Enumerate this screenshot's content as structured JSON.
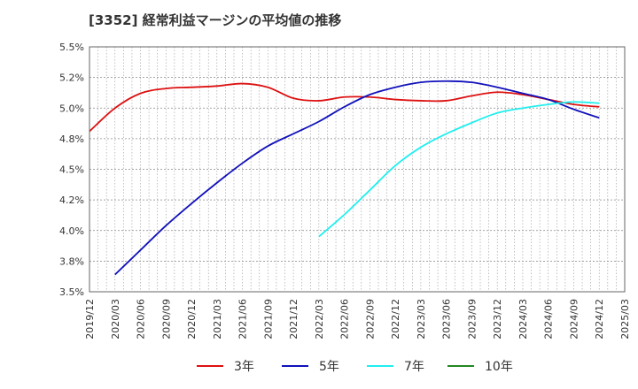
{
  "chart_data": {
    "type": "line",
    "title": "[3352]  経常利益マージンの平均値の推移",
    "xlabel": "",
    "ylabel": "",
    "x_ticks": [
      "2019/12",
      "2020/03",
      "2020/06",
      "2020/09",
      "2020/12",
      "2021/03",
      "2021/06",
      "2021/09",
      "2021/12",
      "2022/03",
      "2022/06",
      "2022/09",
      "2022/12",
      "2023/03",
      "2023/06",
      "2023/09",
      "2023/12",
      "2024/03",
      "2024/06",
      "2024/09",
      "2024/12",
      "2025/03"
    ],
    "y_ticks": [
      "3.5%",
      "3.8%",
      "4.0%",
      "4.2%",
      "4.5%",
      "4.8%",
      "5.0%",
      "5.2%",
      "5.5%"
    ],
    "ylim": [
      3.5,
      5.5
    ],
    "grid": true,
    "legend_position": "bottom",
    "series": [
      {
        "name": "3年",
        "color": "#dd1111",
        "x": [
          "2019/12",
          "2020/03",
          "2020/06",
          "2020/09",
          "2020/12",
          "2021/03",
          "2021/06",
          "2021/09",
          "2021/12",
          "2022/03",
          "2022/06",
          "2022/09",
          "2022/12",
          "2023/03",
          "2023/06",
          "2023/09",
          "2023/12",
          "2024/03",
          "2024/06",
          "2024/09",
          "2024/12"
        ],
        "values": [
          4.81,
          5.0,
          5.12,
          5.16,
          5.17,
          5.18,
          5.2,
          5.17,
          5.08,
          5.06,
          5.09,
          5.09,
          5.07,
          5.06,
          5.06,
          5.1,
          5.13,
          5.11,
          5.07,
          5.03,
          5.01
        ]
      },
      {
        "name": "5年",
        "color": "#1111bb",
        "x": [
          "2020/03",
          "2020/06",
          "2020/09",
          "2020/12",
          "2021/03",
          "2021/06",
          "2021/09",
          "2021/12",
          "2022/03",
          "2022/06",
          "2022/09",
          "2022/12",
          "2023/03",
          "2023/06",
          "2023/09",
          "2023/12",
          "2024/03",
          "2024/06",
          "2024/09",
          "2024/12"
        ],
        "values": [
          3.64,
          3.84,
          4.04,
          4.22,
          4.39,
          4.55,
          4.69,
          4.79,
          4.89,
          5.01,
          5.11,
          5.17,
          5.21,
          5.22,
          5.21,
          5.17,
          5.12,
          5.07,
          4.99,
          4.92
        ]
      },
      {
        "name": "7年",
        "color": "#22eeee",
        "x": [
          "2022/03",
          "2022/06",
          "2022/09",
          "2022/12",
          "2023/03",
          "2023/06",
          "2023/09",
          "2023/12",
          "2024/03",
          "2024/06",
          "2024/09",
          "2024/12"
        ],
        "values": [
          3.95,
          4.13,
          4.33,
          4.53,
          4.68,
          4.79,
          4.88,
          4.96,
          5.0,
          5.03,
          5.05,
          5.04
        ]
      },
      {
        "name": "10年",
        "color": "#228822",
        "x": [],
        "values": []
      }
    ]
  }
}
